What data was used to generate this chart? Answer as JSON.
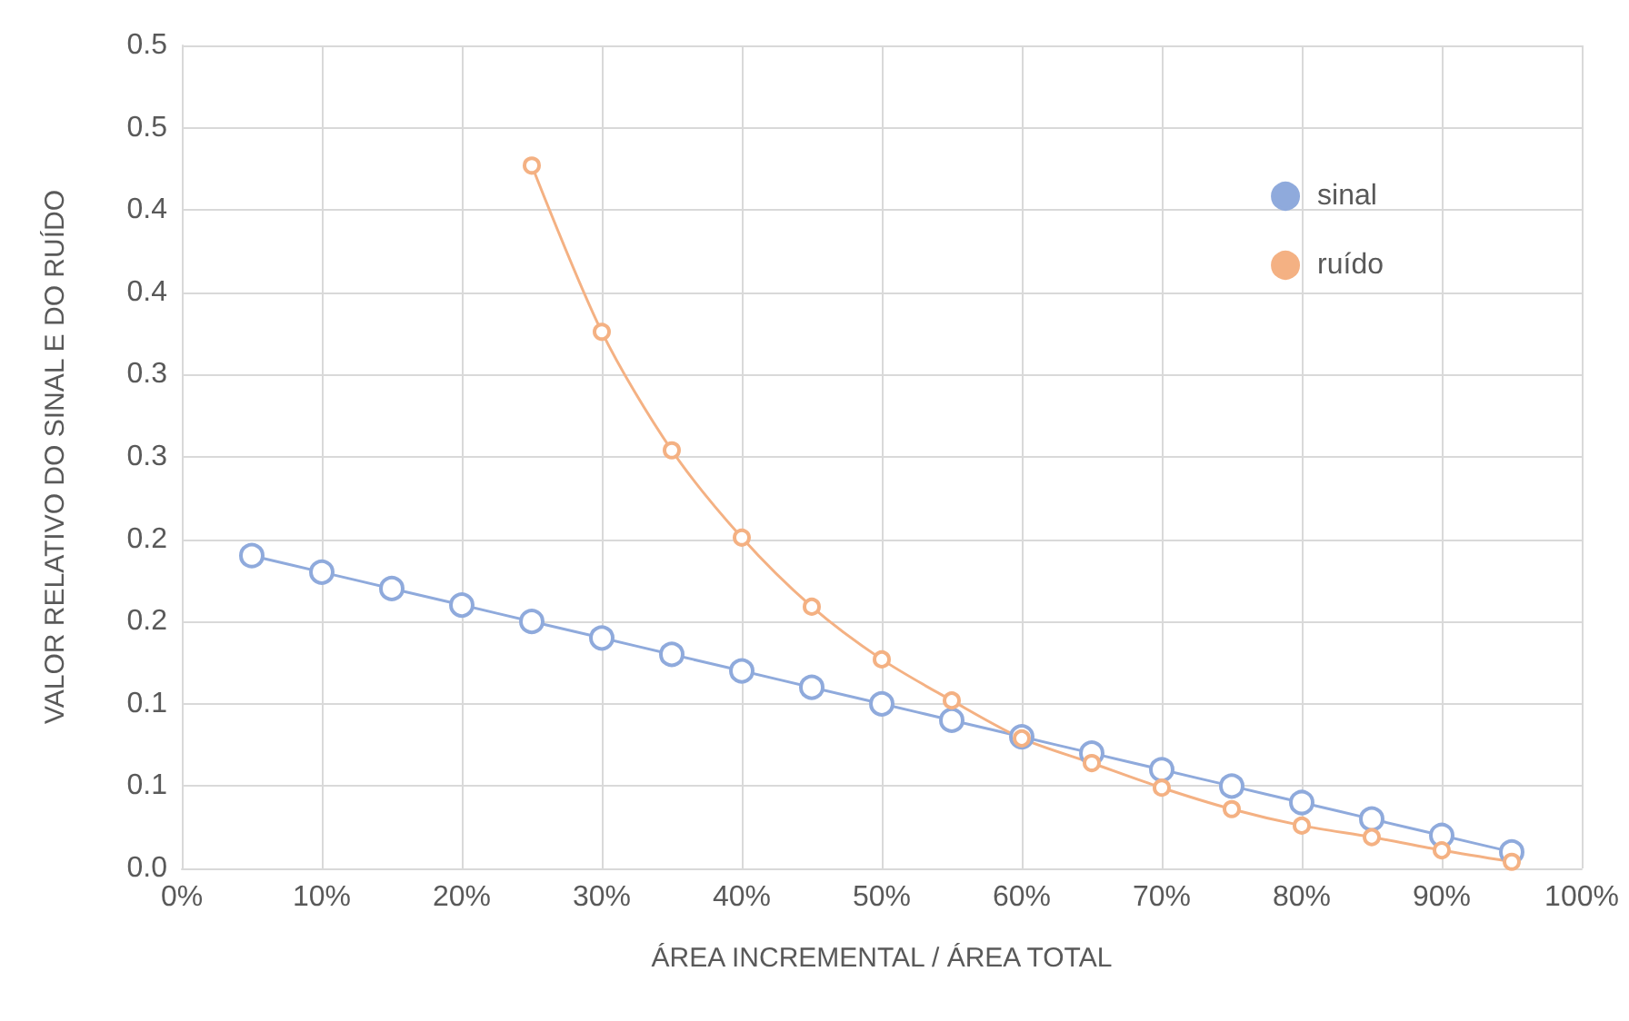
{
  "chart_data": {
    "type": "line",
    "xlabel": "ÁREA INCREMENTAL / ÁREA TOTAL",
    "ylabel": "VALOR RELATIVO DO SINAL E DO RUÍDO",
    "x": [
      5,
      10,
      15,
      20,
      25,
      30,
      35,
      40,
      45,
      50,
      55,
      60,
      65,
      70,
      75,
      80,
      85,
      90,
      95
    ],
    "series": [
      {
        "name": "sinal",
        "color": "#8faadc",
        "values": [
          0.19,
          0.18,
          0.17,
          0.16,
          0.15,
          0.14,
          0.13,
          0.12,
          0.11,
          0.1,
          0.09,
          0.08,
          0.07,
          0.06,
          0.05,
          0.04,
          0.03,
          0.02,
          0.01
        ]
      },
      {
        "name": "ruído",
        "color": "#f4b183",
        "values": [
          null,
          null,
          null,
          null,
          0.427,
          0.326,
          0.254,
          0.201,
          0.159,
          0.127,
          0.102,
          0.079,
          0.064,
          0.049,
          0.036,
          0.026,
          0.019,
          0.011,
          0.004
        ]
      }
    ],
    "xlim": [
      0,
      100
    ],
    "xticks": [
      {
        "value": 0,
        "label": "0%"
      },
      {
        "value": 10,
        "label": "10%"
      },
      {
        "value": 20,
        "label": "20%"
      },
      {
        "value": 30,
        "label": "30%"
      },
      {
        "value": 40,
        "label": "40%"
      },
      {
        "value": 50,
        "label": "50%"
      },
      {
        "value": 60,
        "label": "60%"
      },
      {
        "value": 70,
        "label": "70%"
      },
      {
        "value": 80,
        "label": "80%"
      },
      {
        "value": 90,
        "label": "90%"
      },
      {
        "value": 100,
        "label": "100%"
      }
    ],
    "ylim": [
      0,
      0.5
    ],
    "yticks": [
      {
        "value": 0,
        "label": "0.0"
      },
      {
        "value": 0.05,
        "label": "0.1"
      },
      {
        "value": 0.1,
        "label": "0.1"
      },
      {
        "value": 0.15,
        "label": "0.2"
      },
      {
        "value": 0.2,
        "label": "0.2"
      },
      {
        "value": 0.25,
        "label": "0.3"
      },
      {
        "value": 0.3,
        "label": "0.3"
      },
      {
        "value": 0.35,
        "label": "0.4"
      },
      {
        "value": 0.4,
        "label": "0.4"
      },
      {
        "value": 0.45,
        "label": "0.5"
      },
      {
        "value": 0.5,
        "label": "0.5"
      }
    ],
    "grid": true,
    "legend": "top right",
    "marker": "circle",
    "line_style": "solid"
  }
}
